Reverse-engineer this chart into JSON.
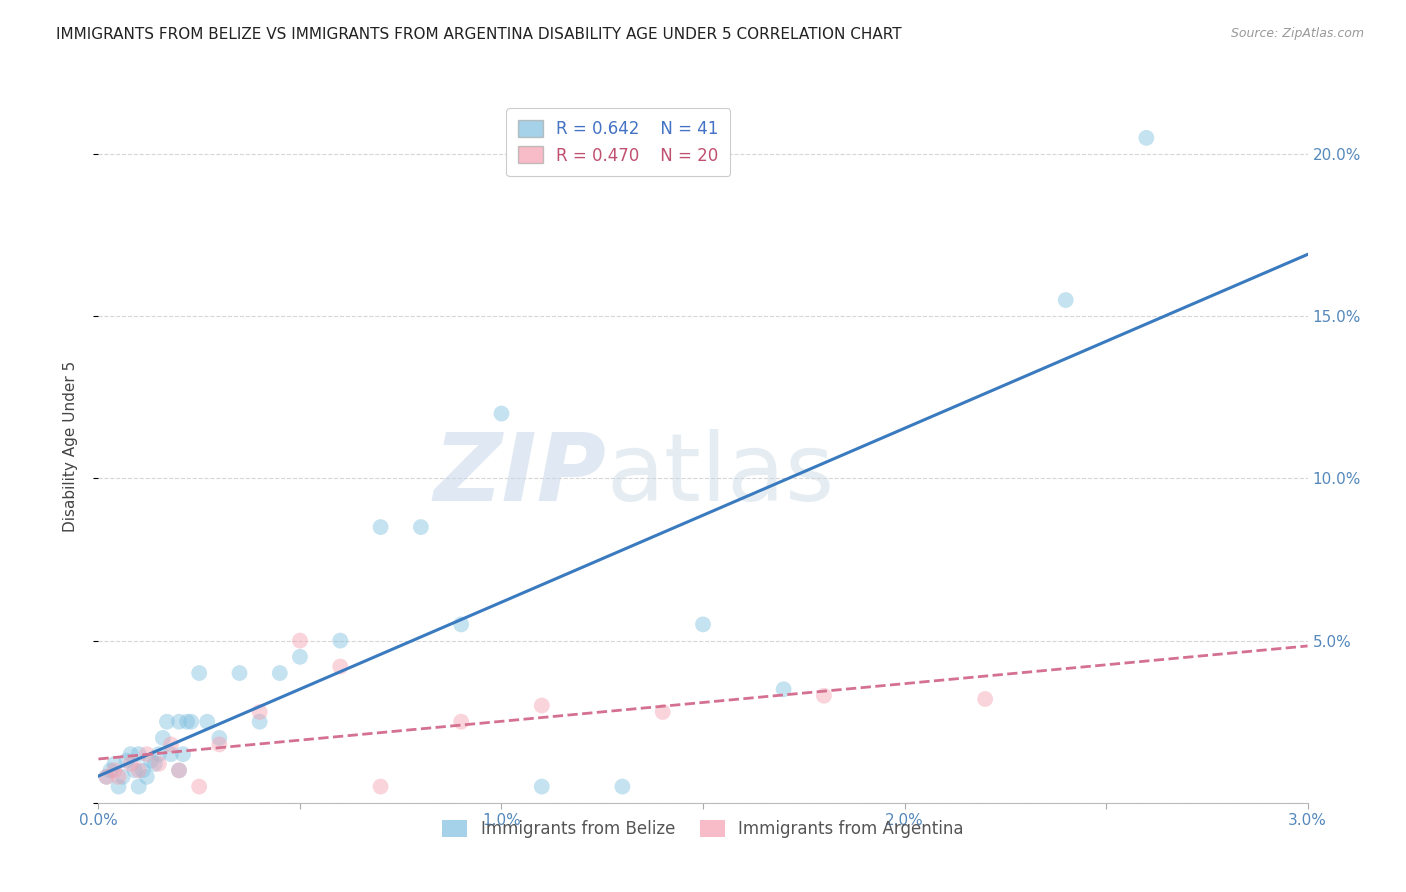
{
  "title": "IMMIGRANTS FROM BELIZE VS IMMIGRANTS FROM ARGENTINA DISABILITY AGE UNDER 5 CORRELATION CHART",
  "source": "Source: ZipAtlas.com",
  "ylabel": "Disability Age Under 5",
  "belize_R": 0.642,
  "belize_N": 41,
  "argentina_R": 0.47,
  "argentina_N": 20,
  "belize_color": "#7fbfdf",
  "argentina_color": "#f4a0b0",
  "belize_line_color": "#3a7abf",
  "argentina_line_color": "#d47090",
  "background_color": "#ffffff",
  "watermark_zip": "ZIP",
  "watermark_atlas": "atlas",
  "xlim": [
    0.0,
    0.03
  ],
  "ylim": [
    0.0,
    0.22
  ],
  "x_ticks": [
    0.0,
    0.005,
    0.01,
    0.015,
    0.02,
    0.025,
    0.03
  ],
  "x_tick_labels": [
    "0.0%",
    "",
    "1.0%",
    "",
    "2.0%",
    "",
    "3.0%"
  ],
  "y_ticks": [
    0.0,
    0.05,
    0.1,
    0.15,
    0.2
  ],
  "y_right_labels": [
    "",
    "5.0%",
    "10.0%",
    "15.0%",
    "20.0%"
  ],
  "belize_x": [
    0.0002,
    0.0003,
    0.0004,
    0.0005,
    0.0006,
    0.0007,
    0.0008,
    0.0009,
    0.001,
    0.001,
    0.0011,
    0.0012,
    0.0013,
    0.0014,
    0.0015,
    0.0016,
    0.0017,
    0.0018,
    0.002,
    0.002,
    0.0021,
    0.0022,
    0.0023,
    0.0025,
    0.0027,
    0.003,
    0.0035,
    0.004,
    0.0045,
    0.005,
    0.006,
    0.007,
    0.008,
    0.009,
    0.01,
    0.011,
    0.013,
    0.015,
    0.017,
    0.024,
    0.026
  ],
  "belize_y": [
    0.008,
    0.01,
    0.012,
    0.005,
    0.008,
    0.013,
    0.015,
    0.01,
    0.005,
    0.015,
    0.01,
    0.008,
    0.013,
    0.012,
    0.015,
    0.02,
    0.025,
    0.015,
    0.01,
    0.025,
    0.015,
    0.025,
    0.025,
    0.04,
    0.025,
    0.02,
    0.04,
    0.025,
    0.04,
    0.045,
    0.05,
    0.085,
    0.085,
    0.055,
    0.12,
    0.005,
    0.005,
    0.055,
    0.035,
    0.155,
    0.205
  ],
  "argentina_x": [
    0.0002,
    0.0004,
    0.0005,
    0.0008,
    0.001,
    0.0012,
    0.0015,
    0.0018,
    0.002,
    0.0025,
    0.003,
    0.004,
    0.005,
    0.006,
    0.007,
    0.009,
    0.011,
    0.014,
    0.018,
    0.022
  ],
  "argentina_y": [
    0.008,
    0.01,
    0.008,
    0.012,
    0.01,
    0.015,
    0.012,
    0.018,
    0.01,
    0.005,
    0.018,
    0.028,
    0.05,
    0.042,
    0.005,
    0.025,
    0.03,
    0.028,
    0.033,
    0.032
  ],
  "title_fontsize": 11,
  "axis_label_fontsize": 11,
  "tick_fontsize": 11,
  "legend_fontsize": 12,
  "marker_size": 130,
  "marker_alpha": 0.45,
  "grid_color": "#cccccc",
  "grid_linestyle": "--",
  "grid_alpha": 0.8,
  "belize_label": "Immigrants from Belize",
  "argentina_label": "Immigrants from Argentina"
}
